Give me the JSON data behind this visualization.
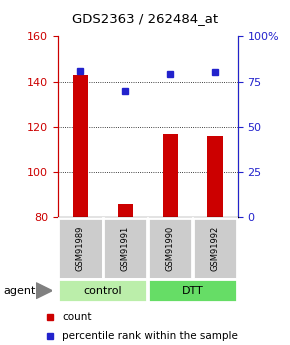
{
  "title": "GDS2363 / 262484_at",
  "samples": [
    "GSM91989",
    "GSM91991",
    "GSM91990",
    "GSM91992"
  ],
  "counts": [
    143,
    86,
    117,
    116
  ],
  "percentiles": [
    81,
    70,
    79,
    80
  ],
  "ylim_left": [
    80,
    160
  ],
  "ylim_right": [
    0,
    100
  ],
  "yticks_left": [
    80,
    100,
    120,
    140,
    160
  ],
  "yticks_right": [
    0,
    25,
    50,
    75,
    100
  ],
  "yticklabels_right": [
    "0",
    "25",
    "50",
    "75",
    "100%"
  ],
  "bar_color": "#cc0000",
  "dot_color": "#2222cc",
  "bar_width": 0.35,
  "group_colors": {
    "control": "#bbeeaa",
    "DTT": "#66dd66"
  },
  "group_label": "agent",
  "legend_count_label": "count",
  "legend_pct_label": "percentile rank within the sample",
  "sample_box_color": "#cccccc",
  "left_tick_color": "#cc0000",
  "right_tick_color": "#2222cc",
  "groups_info": [
    [
      "control",
      0,
      1
    ],
    [
      "DTT",
      2,
      3
    ]
  ]
}
